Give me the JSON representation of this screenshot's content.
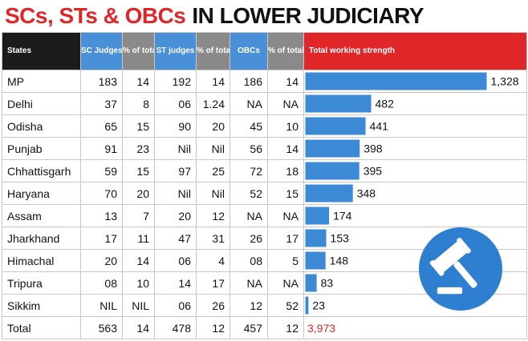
{
  "title": {
    "part1": "SCs, STs & OBCs",
    "part2": "IN LOWER JUDICIARY"
  },
  "headers": {
    "states": "States",
    "sc": "SC Judges",
    "sc_pct": "% of total",
    "st": "ST judges",
    "st_pct": "% of total",
    "obc": "OBCs",
    "obc_pct": "% of total",
    "total": "Total working strength"
  },
  "rows": [
    {
      "state": "MP",
      "sc": "183",
      "sc_pct": "14",
      "st": "192",
      "st_pct": "14",
      "obc": "186",
      "obc_pct": "14",
      "total": "1,328"
    },
    {
      "state": "Delhi",
      "sc": "37",
      "sc_pct": "8",
      "st": "06",
      "st_pct": "1.24",
      "obc": "NA",
      "obc_pct": "NA",
      "total": "482"
    },
    {
      "state": "Odisha",
      "sc": "65",
      "sc_pct": "15",
      "st": "90",
      "st_pct": "20",
      "obc": "45",
      "obc_pct": "10",
      "total": "441"
    },
    {
      "state": "Punjab",
      "sc": "91",
      "sc_pct": "23",
      "st": "Nil",
      "st_pct": "Nil",
      "obc": "56",
      "obc_pct": "14",
      "total": "398"
    },
    {
      "state": "Chhattisgarh",
      "sc": "59",
      "sc_pct": "15",
      "st": "97",
      "st_pct": "25",
      "obc": "72",
      "obc_pct": "18",
      "total": "395"
    },
    {
      "state": "Haryana",
      "sc": "70",
      "sc_pct": "20",
      "st": "Nil",
      "st_pct": "Nil",
      "obc": "52",
      "obc_pct": "15",
      "total": "348"
    },
    {
      "state": "Assam",
      "sc": "13",
      "sc_pct": "7",
      "st": "20",
      "st_pct": "12",
      "obc": "NA",
      "obc_pct": "NA",
      "total": "174"
    },
    {
      "state": "Jharkhand",
      "sc": "17",
      "sc_pct": "11",
      "st": "47",
      "st_pct": "31",
      "obc": "26",
      "obc_pct": "17",
      "total": "153"
    },
    {
      "state": "Himachal",
      "sc": "20",
      "sc_pct": "14",
      "st": "06",
      "st_pct": "4",
      "obc": "08",
      "obc_pct": "5",
      "total": "148"
    },
    {
      "state": "Tripura",
      "sc": "08",
      "sc_pct": "10",
      "st": "14",
      "st_pct": "17",
      "obc": "NA",
      "obc_pct": "NA",
      "total": "83"
    },
    {
      "state": "Sikkim",
      "sc": "NIL",
      "sc_pct": "NIL",
      "st": "06",
      "st_pct": "26",
      "obc": "12",
      "obc_pct": "52",
      "total": "23"
    }
  ],
  "total_row": {
    "state": "Total",
    "sc": "563",
    "sc_pct": "14",
    "st": "478",
    "st_pct": "12",
    "obc": "457",
    "obc_pct": "12",
    "total": "3,973"
  },
  "colors": {
    "red": "#e1262a",
    "blue": "#4a90d9",
    "bar": "#3c8ad6",
    "grey": "#8a8a8a",
    "dark": "#1c1c1c",
    "icon": "#2f7fd0"
  },
  "icon": "gavel-icon",
  "chart_data": {
    "type": "bar",
    "orientation": "horizontal",
    "categories": [
      "MP",
      "Delhi",
      "Odisha",
      "Punjab",
      "Chhattisgarh",
      "Haryana",
      "Assam",
      "Jharkhand",
      "Himachal",
      "Tripura",
      "Sikkim"
    ],
    "values": [
      1328,
      482,
      441,
      398,
      395,
      348,
      174,
      153,
      148,
      83,
      23
    ],
    "title": "Total working strength"
  }
}
